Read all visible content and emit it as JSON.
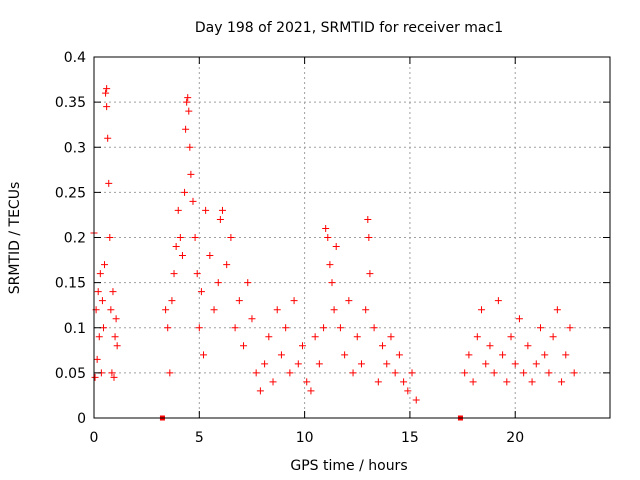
{
  "chart_data": {
    "type": "scatter",
    "title": "Day 198 of 2021, SRMTID for receiver mac1",
    "xlabel": "GPS time / hours",
    "ylabel": "SRMTID / TECUs",
    "xlim": [
      0,
      24.5
    ],
    "ylim": [
      0,
      0.4
    ],
    "xticks": [
      0,
      5,
      10,
      15,
      20
    ],
    "xtick_labels": [
      "0",
      "5",
      "10",
      "15",
      "20"
    ],
    "yticks": [
      0,
      0.05,
      0.1,
      0.15,
      0.2,
      0.25,
      0.3,
      0.35,
      0.4
    ],
    "ytick_labels": [
      "0",
      "0.05",
      "0.1",
      "0.15",
      "0.2",
      "0.25",
      "0.3",
      "0.35",
      "0.4"
    ],
    "grid": true,
    "marker": "plus",
    "color": "#ff0000",
    "series": [
      {
        "name": "SRMTID",
        "points": [
          [
            0.0,
            0.205
          ],
          [
            0.05,
            0.045
          ],
          [
            0.1,
            0.12
          ],
          [
            0.15,
            0.065
          ],
          [
            0.2,
            0.14
          ],
          [
            0.25,
            0.09
          ],
          [
            0.3,
            0.16
          ],
          [
            0.35,
            0.05
          ],
          [
            0.4,
            0.13
          ],
          [
            0.45,
            0.1
          ],
          [
            0.5,
            0.17
          ],
          [
            0.55,
            0.36
          ],
          [
            0.6,
            0.365
          ],
          [
            0.6,
            0.345
          ],
          [
            0.65,
            0.31
          ],
          [
            0.7,
            0.26
          ],
          [
            0.75,
            0.2
          ],
          [
            0.8,
            0.12
          ],
          [
            0.85,
            0.05
          ],
          [
            0.9,
            0.14
          ],
          [
            0.95,
            0.045
          ],
          [
            1.0,
            0.09
          ],
          [
            1.05,
            0.11
          ],
          [
            1.1,
            0.08
          ],
          [
            3.4,
            0.12
          ],
          [
            3.5,
            0.1
          ],
          [
            3.6,
            0.05
          ],
          [
            3.7,
            0.13
          ],
          [
            3.8,
            0.16
          ],
          [
            3.9,
            0.19
          ],
          [
            4.0,
            0.23
          ],
          [
            4.1,
            0.2
          ],
          [
            4.2,
            0.18
          ],
          [
            4.3,
            0.25
          ],
          [
            4.35,
            0.32
          ],
          [
            4.4,
            0.35
          ],
          [
            4.45,
            0.355
          ],
          [
            4.5,
            0.34
          ],
          [
            4.55,
            0.3
          ],
          [
            4.6,
            0.27
          ],
          [
            4.7,
            0.24
          ],
          [
            4.8,
            0.2
          ],
          [
            4.9,
            0.16
          ],
          [
            5.0,
            0.1
          ],
          [
            5.1,
            0.14
          ],
          [
            5.2,
            0.07
          ],
          [
            5.3,
            0.23
          ],
          [
            5.5,
            0.18
          ],
          [
            5.7,
            0.12
          ],
          [
            5.9,
            0.15
          ],
          [
            6.0,
            0.22
          ],
          [
            6.1,
            0.23
          ],
          [
            6.3,
            0.17
          ],
          [
            6.5,
            0.2
          ],
          [
            6.7,
            0.1
          ],
          [
            6.9,
            0.13
          ],
          [
            7.1,
            0.08
          ],
          [
            7.3,
            0.15
          ],
          [
            7.5,
            0.11
          ],
          [
            7.7,
            0.05
          ],
          [
            7.9,
            0.03
          ],
          [
            8.1,
            0.06
          ],
          [
            8.3,
            0.09
          ],
          [
            8.5,
            0.04
          ],
          [
            8.7,
            0.12
          ],
          [
            8.9,
            0.07
          ],
          [
            9.1,
            0.1
          ],
          [
            9.3,
            0.05
          ],
          [
            9.5,
            0.13
          ],
          [
            9.7,
            0.06
          ],
          [
            9.9,
            0.08
          ],
          [
            10.1,
            0.04
          ],
          [
            10.3,
            0.03
          ],
          [
            10.5,
            0.09
          ],
          [
            10.7,
            0.06
          ],
          [
            10.9,
            0.1
          ],
          [
            11.0,
            0.21
          ],
          [
            11.1,
            0.2
          ],
          [
            11.2,
            0.17
          ],
          [
            11.3,
            0.15
          ],
          [
            11.4,
            0.12
          ],
          [
            11.5,
            0.19
          ],
          [
            11.7,
            0.1
          ],
          [
            11.9,
            0.07
          ],
          [
            12.1,
            0.13
          ],
          [
            12.3,
            0.05
          ],
          [
            12.5,
            0.09
          ],
          [
            12.7,
            0.06
          ],
          [
            12.9,
            0.12
          ],
          [
            13.0,
            0.22
          ],
          [
            13.05,
            0.2
          ],
          [
            13.1,
            0.16
          ],
          [
            13.3,
            0.1
          ],
          [
            13.5,
            0.04
          ],
          [
            13.7,
            0.08
          ],
          [
            13.9,
            0.06
          ],
          [
            14.1,
            0.09
          ],
          [
            14.3,
            0.05
          ],
          [
            14.5,
            0.07
          ],
          [
            14.7,
            0.04
          ],
          [
            14.9,
            0.03
          ],
          [
            15.1,
            0.05
          ],
          [
            15.3,
            0.02
          ],
          [
            17.6,
            0.05
          ],
          [
            17.8,
            0.07
          ],
          [
            18.0,
            0.04
          ],
          [
            18.2,
            0.09
          ],
          [
            18.4,
            0.12
          ],
          [
            18.6,
            0.06
          ],
          [
            18.8,
            0.08
          ],
          [
            19.0,
            0.05
          ],
          [
            19.2,
            0.13
          ],
          [
            19.4,
            0.07
          ],
          [
            19.6,
            0.04
          ],
          [
            19.8,
            0.09
          ],
          [
            20.0,
            0.06
          ],
          [
            20.2,
            0.11
          ],
          [
            20.4,
            0.05
          ],
          [
            20.6,
            0.08
          ],
          [
            20.8,
            0.04
          ],
          [
            21.0,
            0.06
          ],
          [
            21.2,
            0.1
          ],
          [
            21.4,
            0.07
          ],
          [
            21.6,
            0.05
          ],
          [
            21.8,
            0.09
          ],
          [
            22.0,
            0.12
          ],
          [
            22.2,
            0.04
          ],
          [
            22.4,
            0.07
          ],
          [
            22.6,
            0.1
          ],
          [
            22.8,
            0.05
          ]
        ]
      }
    ],
    "gap_markers": [
      [
        3.25,
        0.0
      ],
      [
        17.4,
        0.0
      ]
    ]
  }
}
